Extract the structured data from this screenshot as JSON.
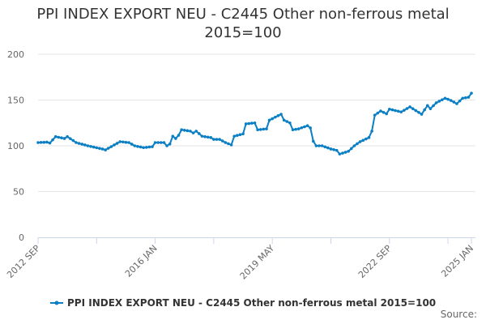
{
  "chart_data": {
    "type": "line",
    "title": "PPI INDEX EXPORT NEU - C2445 Other non-ferrous metal 2015=100",
    "ylim": [
      0,
      200
    ],
    "yticks": [
      0,
      50,
      100,
      150,
      200
    ],
    "xtick_labels": [
      "2012 SEP",
      "2016 JAN",
      "2019 MAY",
      "2022 SEP",
      "2025 JAN"
    ],
    "xtick_dates": [
      "2012-09",
      "2016-01",
      "2019-05",
      "2022-09",
      "2025-01"
    ],
    "grid": true,
    "legend_placement": "bottom",
    "series": [
      {
        "name": "PPI INDEX EXPORT NEU - C2445 Other non-ferrous metal 2015=100",
        "color": "#0a7fc4",
        "x": [
          "2012-09",
          "2012-10",
          "2012-11",
          "2012-12",
          "2013-01",
          "2013-02",
          "2013-03",
          "2013-04",
          "2013-05",
          "2013-06",
          "2013-07",
          "2013-08",
          "2013-09",
          "2013-10",
          "2013-11",
          "2013-12",
          "2014-01",
          "2014-02",
          "2014-03",
          "2014-04",
          "2014-05",
          "2014-06",
          "2014-07",
          "2014-08",
          "2014-09",
          "2014-10",
          "2014-11",
          "2014-12",
          "2015-01",
          "2015-02",
          "2015-03",
          "2015-04",
          "2015-05",
          "2015-06",
          "2015-07",
          "2015-08",
          "2015-09",
          "2015-10",
          "2015-11",
          "2015-12",
          "2016-01",
          "2016-02",
          "2016-03",
          "2016-04",
          "2016-05",
          "2016-06",
          "2016-07",
          "2016-08",
          "2016-09",
          "2016-10",
          "2016-11",
          "2016-12",
          "2017-01",
          "2017-02",
          "2017-03",
          "2017-04",
          "2017-05",
          "2017-06",
          "2017-07",
          "2017-08",
          "2017-09",
          "2017-10",
          "2017-11",
          "2017-12",
          "2018-01",
          "2018-02",
          "2018-03",
          "2018-04",
          "2018-05",
          "2018-06",
          "2018-07",
          "2018-08",
          "2018-09",
          "2018-10",
          "2018-11",
          "2018-12",
          "2019-01",
          "2019-02",
          "2019-03",
          "2019-04",
          "2019-05",
          "2019-06",
          "2019-07",
          "2019-08",
          "2019-09",
          "2019-10",
          "2019-11",
          "2019-12",
          "2020-01",
          "2020-02",
          "2020-03",
          "2020-04",
          "2020-05",
          "2020-06",
          "2020-07",
          "2020-08",
          "2020-09",
          "2020-10",
          "2020-11",
          "2020-12",
          "2021-01",
          "2021-02",
          "2021-03",
          "2021-04",
          "2021-05",
          "2021-06",
          "2021-07",
          "2021-08",
          "2021-09",
          "2021-10",
          "2021-11",
          "2021-12",
          "2022-01",
          "2022-02",
          "2022-03",
          "2022-04",
          "2022-05",
          "2022-06",
          "2022-07",
          "2022-08",
          "2022-09",
          "2022-10",
          "2022-11",
          "2022-12",
          "2023-01",
          "2023-02",
          "2023-03",
          "2023-04",
          "2023-05",
          "2023-06",
          "2023-07",
          "2023-08",
          "2023-09",
          "2023-10",
          "2023-11",
          "2023-12",
          "2024-01",
          "2024-02",
          "2024-03",
          "2024-04",
          "2024-05",
          "2024-06",
          "2024-07",
          "2024-08",
          "2024-09",
          "2024-10",
          "2024-11",
          "2024-12",
          "2025-01"
        ],
        "values": [
          103.5,
          103.7,
          103.8,
          104,
          103,
          106.5,
          110,
          109.3,
          108.7,
          108,
          110,
          107.8,
          105.7,
          103.5,
          102.6,
          101.8,
          100.9,
          100,
          99.3,
          98.6,
          97.9,
          97.2,
          96.5,
          95.5,
          97.3,
          99.1,
          100.9,
          102.7,
          104.5,
          104.2,
          103.8,
          103.5,
          101.8,
          100,
          99.3,
          98.7,
          98,
          98.3,
          98.7,
          99,
          103.5,
          103.5,
          103.5,
          103.5,
          100,
          102,
          110.5,
          108,
          111.5,
          117.5,
          117,
          116.5,
          116,
          114,
          116,
          113.3,
          110.5,
          110,
          109.5,
          109,
          107,
          107,
          107,
          105.3,
          103.5,
          102.3,
          101,
          110.5,
          111.3,
          112.2,
          113,
          124,
          124.3,
          124.7,
          125,
          117.5,
          117.8,
          118.2,
          118.5,
          128,
          129.6,
          131.3,
          132.9,
          134.5,
          128,
          126.5,
          125,
          117.5,
          118,
          118.5,
          119.7,
          120.8,
          122,
          119.5,
          105,
          100,
          100,
          100,
          98.8,
          97.7,
          96.5,
          95.8,
          95,
          91,
          92,
          93,
          94,
          97,
          100,
          102.3,
          104.5,
          106,
          107.5,
          109,
          116,
          133.5,
          135.8,
          138,
          136.5,
          135,
          140,
          139.3,
          138.5,
          137.8,
          137,
          138.8,
          140.7,
          142.5,
          140.5,
          138.5,
          136.5,
          134.5,
          139.3,
          144,
          140.5,
          143.8,
          147,
          148.7,
          150.3,
          152,
          150.8,
          149.5,
          147.8,
          146,
          149,
          152,
          152.5,
          153,
          157.5
        ]
      }
    ]
  },
  "source_label": "Source:"
}
